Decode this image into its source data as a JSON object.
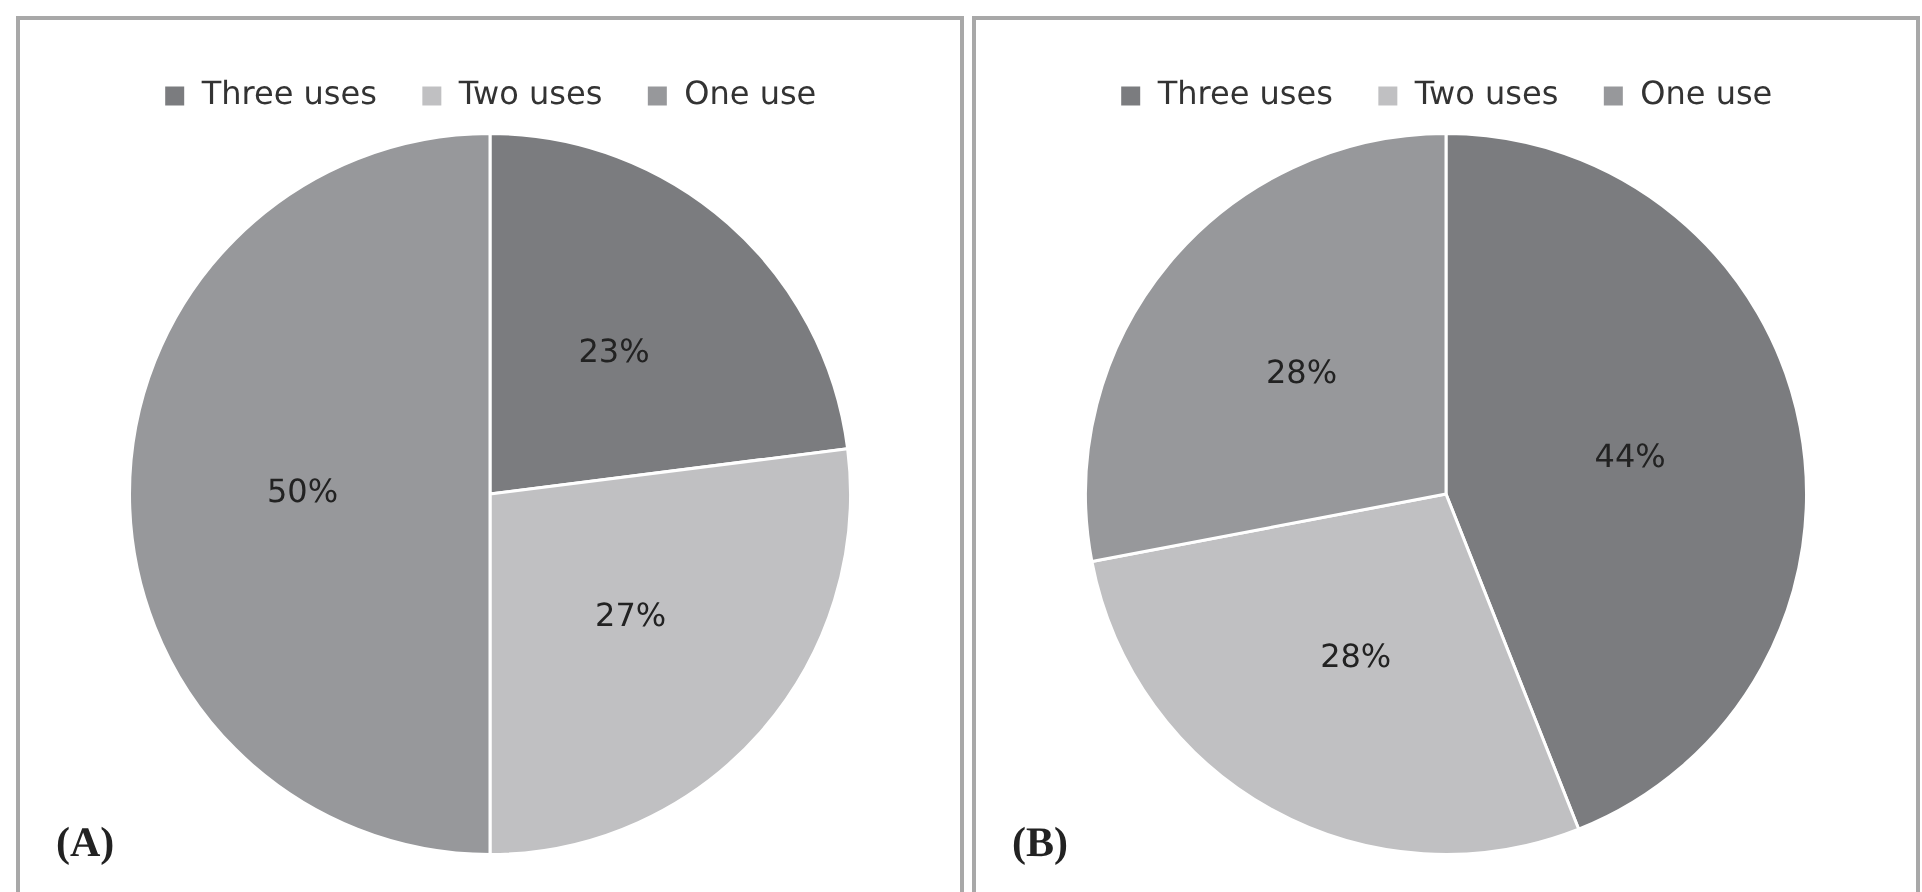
{
  "chart_data": [
    {
      "type": "pie",
      "categories": [
        "Three uses",
        "Two uses",
        "One use"
      ],
      "values": [
        23,
        27,
        50
      ],
      "value_labels": [
        "23%",
        "27%",
        "50%"
      ],
      "colors": [
        "#7b7c7f",
        "#c0c0c2",
        "#97989b"
      ],
      "legend": "top",
      "annotations": [
        "(A)"
      ]
    },
    {
      "type": "pie",
      "categories": [
        "Three uses",
        "Two uses",
        "One use"
      ],
      "values": [
        44,
        28,
        28
      ],
      "value_labels": [
        "44%",
        "28%",
        "28%"
      ],
      "colors": [
        "#7b7c7f",
        "#c0c0c2",
        "#97989b"
      ],
      "legend": "top",
      "annotations": [
        "(B)"
      ]
    }
  ]
}
